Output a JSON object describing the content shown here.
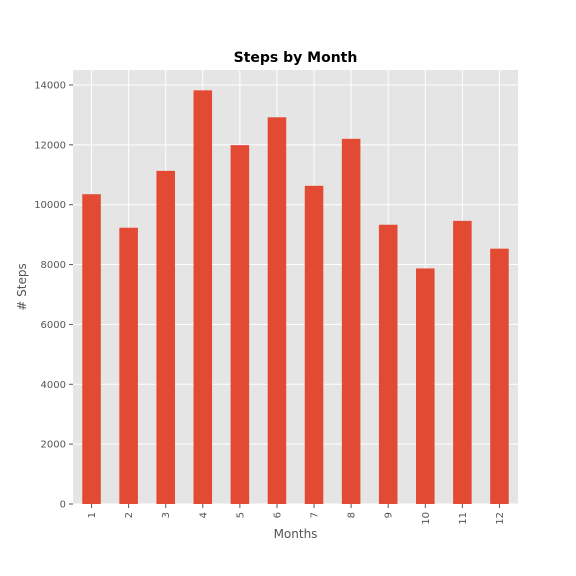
{
  "chart_data": {
    "type": "bar",
    "title": "Steps by Month",
    "xlabel": "Months",
    "ylabel": "# Steps",
    "categories": [
      "1",
      "2",
      "3",
      "4",
      "5",
      "6",
      "7",
      "8",
      "9",
      "10",
      "11",
      "12"
    ],
    "values": [
      10350,
      9230,
      11130,
      13820,
      11990,
      12920,
      10630,
      12200,
      9330,
      7870,
      9460,
      8530
    ],
    "ylim": [
      0,
      14500
    ],
    "yticks": [
      0,
      2000,
      4000,
      6000,
      8000,
      10000,
      12000,
      14000
    ],
    "grid": true,
    "legend": "none",
    "colors": {
      "bar": "#e24a33",
      "plot_background": "#e5e5e5",
      "grid": "#ffffff"
    }
  }
}
